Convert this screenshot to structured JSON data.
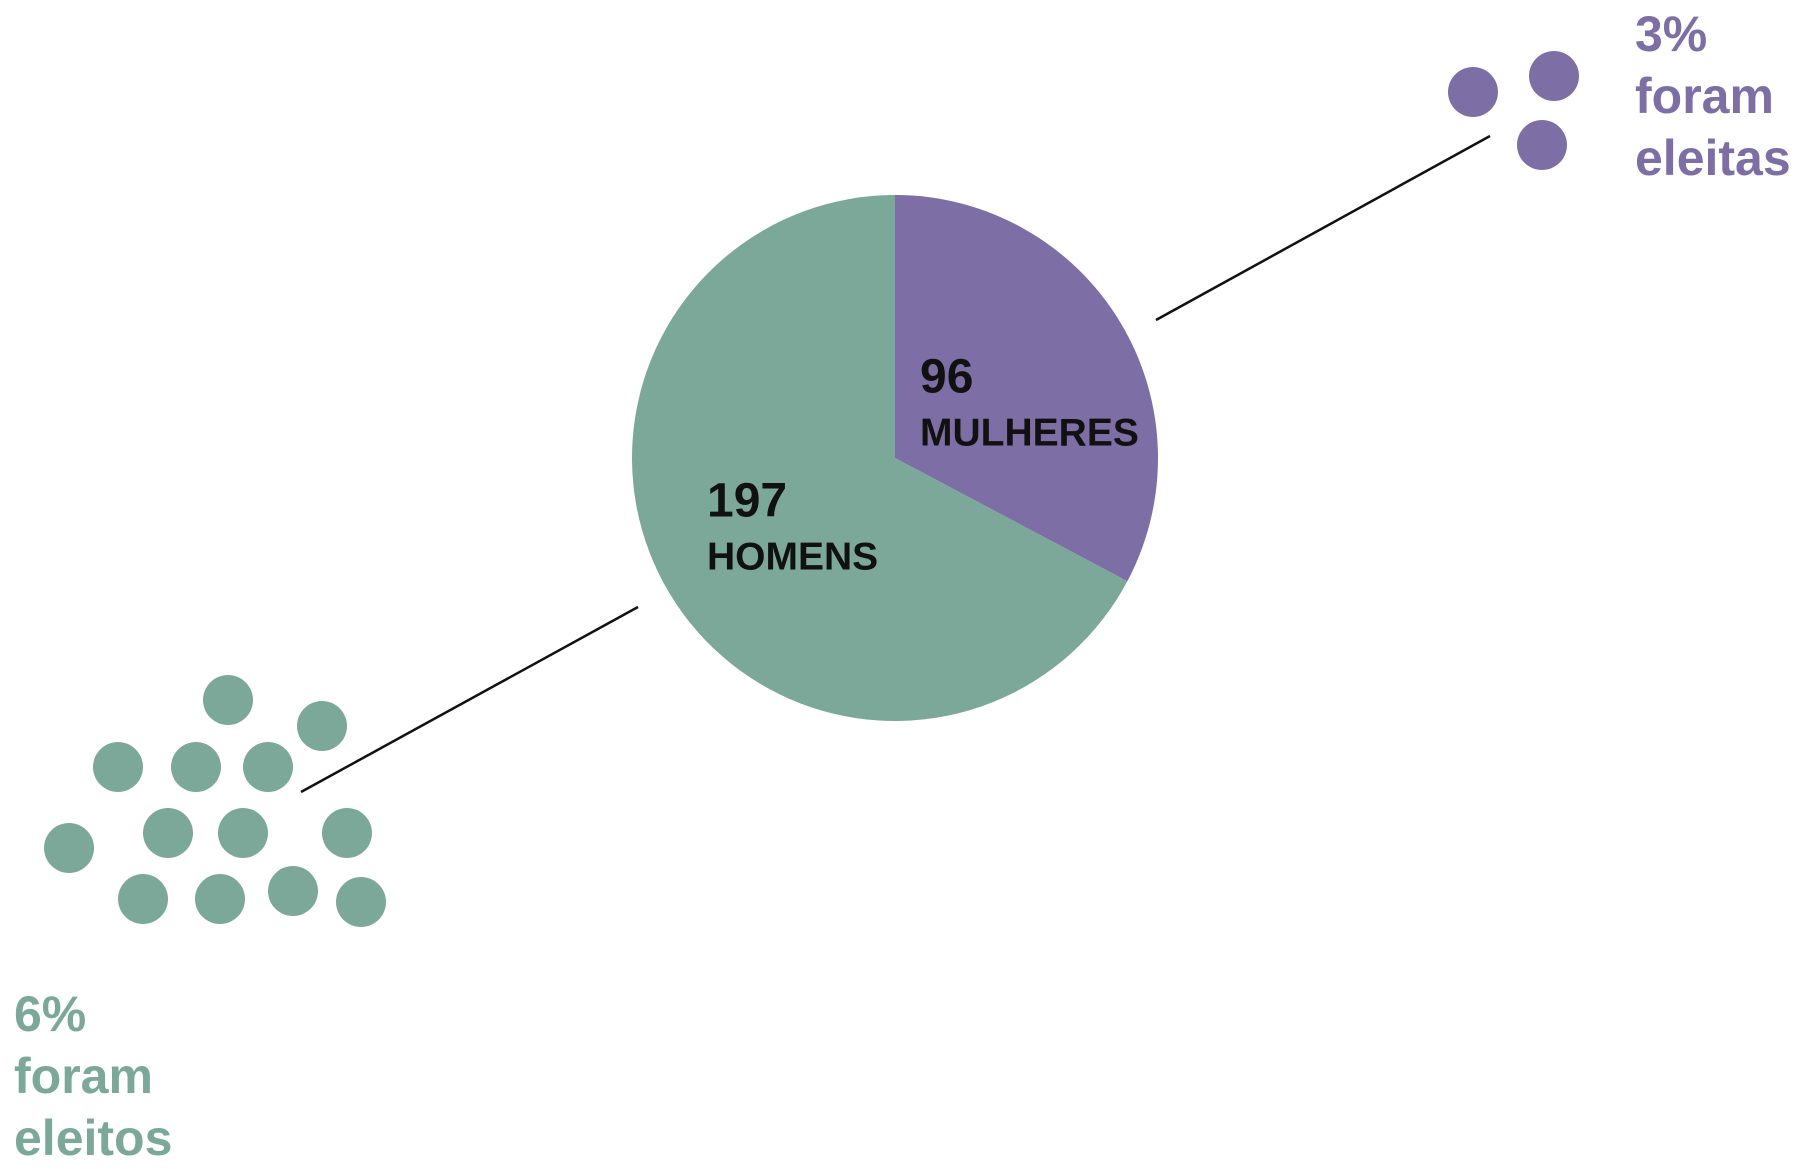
{
  "chart_data": {
    "type": "pie",
    "categories": [
      "HOMENS",
      "MULHERES"
    ],
    "values": [
      197,
      96
    ],
    "colors": [
      "#7ba899",
      "#7d6fa5"
    ],
    "annotations": [
      {
        "lines": [
          "6%",
          "foram",
          "eleitos"
        ],
        "color": "#7ba899"
      },
      {
        "lines": [
          "3%",
          "foram",
          "eleitas"
        ],
        "color": "#7d6fa5"
      }
    ]
  }
}
